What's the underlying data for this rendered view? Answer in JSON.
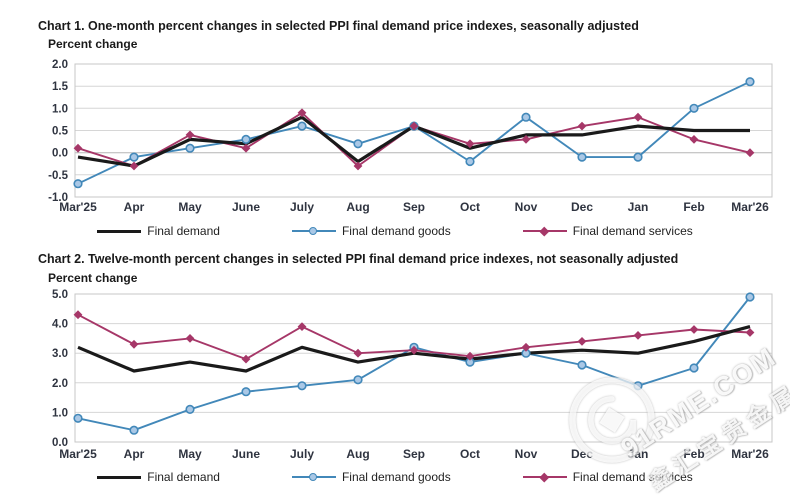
{
  "page": {
    "background": "#ffffff"
  },
  "chart_data": [
    {
      "type": "line",
      "title": "Chart 1. One-month percent changes in selected PPI final demand price indexes, seasonally adjusted",
      "ylabel": "Percent change",
      "xlabel": "",
      "ylim": [
        -1.0,
        2.0
      ],
      "ytick_step": 0.5,
      "grid": true,
      "legend_position": "bottom",
      "categories": [
        "Mar'25",
        "Apr",
        "May",
        "June",
        "July",
        "Aug",
        "Sep",
        "Oct",
        "Nov",
        "Dec",
        "Jan",
        "Feb",
        "Mar'26"
      ],
      "series": [
        {
          "name": "Final demand",
          "color": "#1a1a1a",
          "marker": "none",
          "values": [
            -0.1,
            -0.3,
            0.3,
            0.2,
            0.8,
            -0.2,
            0.6,
            0.1,
            0.4,
            0.4,
            0.6,
            0.5,
            0.5
          ]
        },
        {
          "name": "Final demand goods",
          "color": "#4288b9",
          "marker": "circle",
          "marker_fill": "#aac8e6",
          "values": [
            -0.7,
            -0.1,
            0.1,
            0.3,
            0.6,
            0.2,
            0.6,
            -0.2,
            0.8,
            -0.1,
            -0.1,
            1.0,
            1.6
          ]
        },
        {
          "name": "Final demand services",
          "color": "#a63768",
          "marker": "diamond",
          "marker_fill": "#a63768",
          "values": [
            0.1,
            -0.3,
            0.4,
            0.1,
            0.9,
            -0.3,
            0.6,
            0.2,
            0.3,
            0.6,
            0.8,
            0.3,
            0.0
          ]
        }
      ]
    },
    {
      "type": "line",
      "title": "Chart 2. Twelve-month percent changes in selected PPI final demand price indexes, not seasonally adjusted",
      "ylabel": "Percent change",
      "xlabel": "",
      "ylim": [
        0.0,
        5.0
      ],
      "ytick_step": 1.0,
      "grid": true,
      "legend_position": "bottom",
      "categories": [
        "Mar'25",
        "Apr",
        "May",
        "June",
        "July",
        "Aug",
        "Sep",
        "Oct",
        "Nov",
        "Dec",
        "Jan",
        "Feb",
        "Mar'26"
      ],
      "series": [
        {
          "name": "Final demand",
          "color": "#1a1a1a",
          "marker": "none",
          "values": [
            3.2,
            2.4,
            2.7,
            2.4,
            3.2,
            2.7,
            3.0,
            2.8,
            3.0,
            3.1,
            3.0,
            3.4,
            3.9
          ]
        },
        {
          "name": "Final demand goods",
          "color": "#4288b9",
          "marker": "circle",
          "marker_fill": "#aac8e6",
          "values": [
            0.8,
            0.4,
            1.1,
            1.7,
            1.9,
            2.1,
            3.2,
            2.7,
            3.0,
            2.6,
            1.9,
            2.5,
            4.9
          ]
        },
        {
          "name": "Final demand services",
          "color": "#a63768",
          "marker": "diamond",
          "marker_fill": "#a63768",
          "values": [
            4.3,
            3.3,
            3.5,
            2.8,
            3.9,
            3.0,
            3.1,
            2.9,
            3.2,
            3.4,
            3.6,
            3.8,
            3.7
          ]
        }
      ]
    }
  ],
  "colors": {
    "final_demand": "#1a1a1a",
    "final_demand_goods": "#4288b9",
    "final_demand_services": "#a63768",
    "gridline": "#d6d6d6",
    "axis": "#a3a3a3"
  },
  "watermark": {
    "text": "91RME.COM",
    "cn_text": "鑫汇宝贵金属",
    "logo": "at-circle-logo"
  }
}
